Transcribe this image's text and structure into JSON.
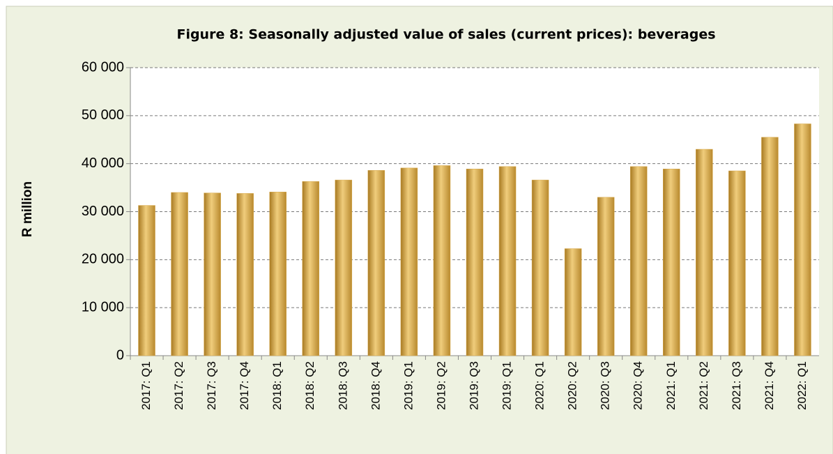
{
  "chart_data": {
    "type": "bar",
    "title": "Figure 8: Seasonally adjusted value of sales (current prices): beverages",
    "y_axis_label": "R million",
    "categories": [
      "2017: Q1",
      "2017: Q2",
      "2017: Q3",
      "2017: Q4",
      "2018: Q1",
      "2018: Q2",
      "2018: Q3",
      "2018: Q4",
      "2019: Q1",
      "2019: Q2",
      "2019: Q3",
      "2019: Q1",
      "2020: Q1",
      "2020: Q2",
      "2020: Q3",
      "2020: Q4",
      "2021: Q1",
      "2021: Q2",
      "2021: Q3",
      "2021: Q4",
      "2022: Q1"
    ],
    "values": [
      31300,
      34000,
      33900,
      33800,
      34100,
      36300,
      36600,
      38600,
      39100,
      39600,
      38900,
      39400,
      36600,
      22300,
      33000,
      39400,
      38900,
      43000,
      38500,
      45500,
      48300
    ],
    "color": "#d9aa4c",
    "ylim": [
      0,
      60000
    ],
    "yticks": [
      0,
      {
        "value": 10000,
        "label": "10 000"
      },
      {
        "value": 20000,
        "label": "20 000"
      },
      {
        "value": 30000,
        "label": "30 000"
      },
      {
        "value": 40000,
        "label": "40 000"
      },
      {
        "value": 50000,
        "label": "50 000"
      },
      {
        "value": 60000,
        "label": "60 000"
      }
    ],
    "grid": true
  }
}
